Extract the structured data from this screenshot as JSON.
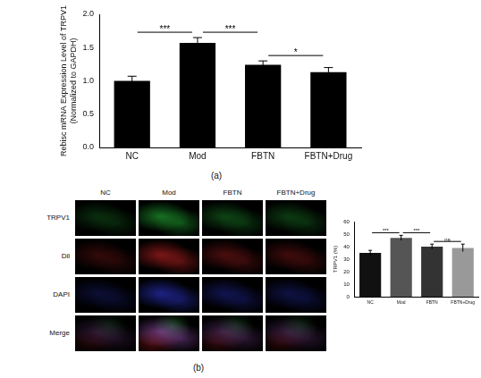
{
  "chart_data": [
    {
      "type": "bar",
      "y_label": [
        "Rebisc mRNA Expression Level of TRPV1",
        "(Normalized to GAPDH)"
      ],
      "categories": [
        "NC",
        "Mod",
        "FBTN",
        "FBTN+Drug"
      ],
      "values": [
        1.0,
        1.57,
        1.24,
        1.13
      ],
      "errors": [
        0.07,
        0.08,
        0.06,
        0.07
      ],
      "color": "#000000",
      "ylim": [
        0,
        2
      ],
      "yticks": [
        {
          "value": 0,
          "label": "0.0"
        },
        {
          "value": 0.5,
          "label": "0.5"
        },
        {
          "value": 1,
          "label": "1.0"
        },
        {
          "value": 1.5,
          "label": "1.5"
        },
        {
          "value": 2,
          "label": "2.0"
        }
      ],
      "grid": false,
      "comparisons": [
        {
          "from": "NC",
          "to": "Mod",
          "label": "***"
        },
        {
          "from": "Mod",
          "to": "FBTN",
          "label": "***"
        },
        {
          "from": "FBTN",
          "to": "FBTN+Drug",
          "label": "*"
        }
      ]
    },
    {
      "type": "bar",
      "y_label": "TRPV1 (%)",
      "categories": [
        "NC",
        "Mod",
        "FBTN",
        "FBTN+Drug"
      ],
      "values": [
        35,
        47,
        40,
        39
      ],
      "errors": [
        2,
        2,
        2,
        3
      ],
      "colors": [
        "#111111",
        "#555555",
        "#333333",
        "#999999"
      ],
      "ylim": [
        0,
        60
      ],
      "yticks": [
        0,
        10,
        20,
        30,
        40,
        50,
        60
      ],
      "grid": false,
      "comparisons": [
        {
          "from": "NC",
          "to": "Mod",
          "label": "***"
        },
        {
          "from": "Mod",
          "to": "FBTN",
          "label": "***"
        },
        {
          "from": "FBTN",
          "to": "FBTN+Drug",
          "label": "ns"
        }
      ]
    }
  ],
  "figure": {
    "panel_labels": [
      "(a)",
      "(b)"
    ],
    "image_grid": {
      "columns": [
        "NC",
        "Mod",
        "FBTN",
        "FBTN+Drug"
      ],
      "rows": [
        "TRPV1",
        "Dil",
        "DAPI",
        "Merge"
      ]
    }
  }
}
